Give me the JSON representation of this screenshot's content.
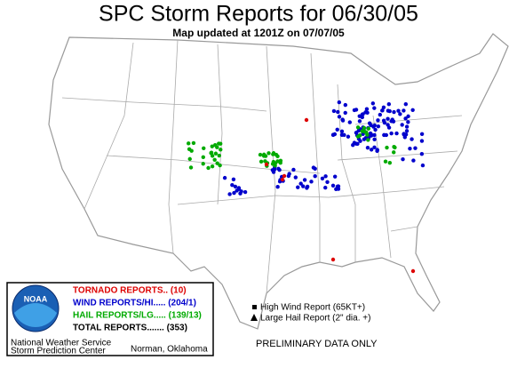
{
  "header": {
    "title": "SPC Storm Reports for 06/30/05",
    "subtitle": "Map updated at 1201Z on 07/07/05"
  },
  "legend": {
    "logo": "NOAA",
    "entries": [
      "TORNADO REPORTS.. (10)",
      "WIND REPORTS/HI..... (204/1)",
      "HAIL REPORTS/LG..... (139/13)",
      "TOTAL REPORTS....... (353)"
    ],
    "symbols": [
      "High Wind Report (65KT+)",
      "Large Hail Report (2\" dia. +)"
    ],
    "agency": [
      "National Weather Service",
      "Storm Prediction Center"
    ],
    "location": "Norman, Oklahoma"
  },
  "note": "PRELIMINARY DATA ONLY"
}
